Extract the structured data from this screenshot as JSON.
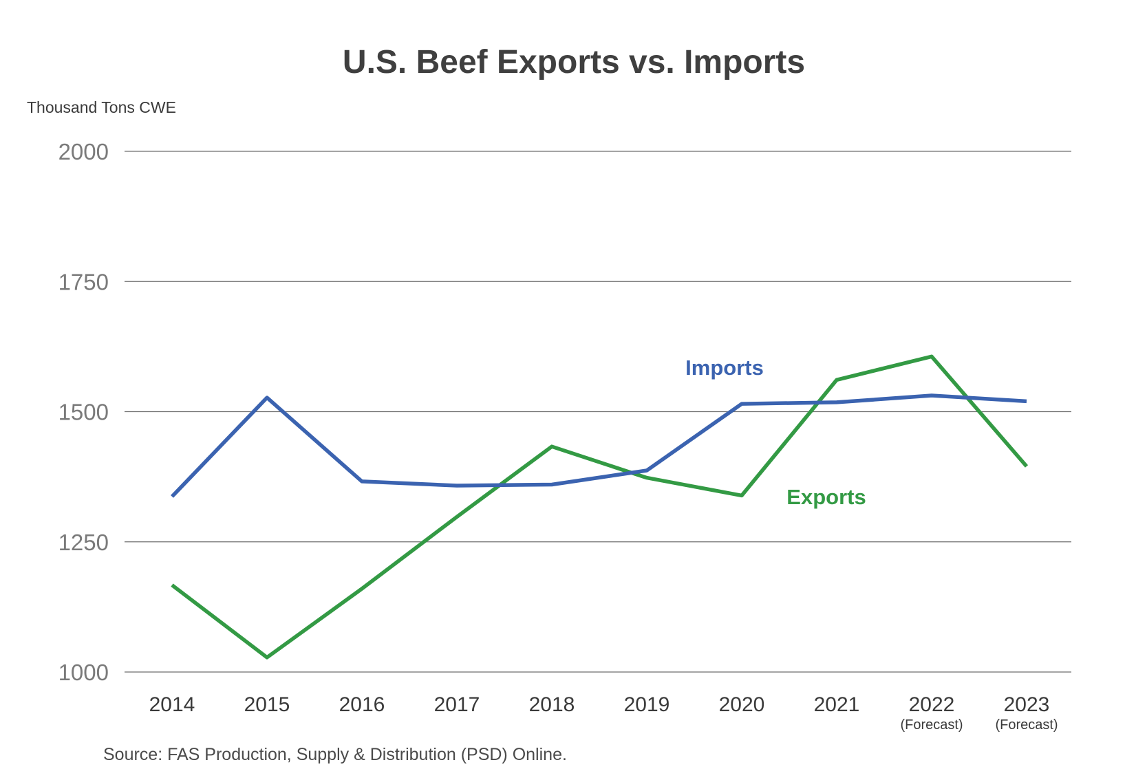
{
  "chart_data": {
    "type": "line",
    "title": "U.S. Beef Exports vs. Imports",
    "ylabel": "Thousand Tons CWE",
    "xlabel": "",
    "categories": [
      "2014",
      "2015",
      "2016",
      "2017",
      "2018",
      "2019",
      "2020",
      "2021",
      "2022",
      "2023"
    ],
    "category_sublabels": [
      "",
      "",
      "",
      "",
      "",
      "",
      "",
      "",
      "(Forecast)",
      "(Forecast)"
    ],
    "yticks": [
      "2000",
      "1750",
      "1500",
      "1250",
      "1000"
    ],
    "ylim": [
      1000,
      2000
    ],
    "grid": true,
    "legend": "none",
    "series": [
      {
        "name": "Imports",
        "color": "#3b63b0",
        "values": [
          1337,
          1527,
          1366,
          1358,
          1360,
          1387,
          1515,
          1518,
          1531,
          1520
        ]
      },
      {
        "name": "Exports",
        "color": "#339a44",
        "values": [
          1167,
          1028,
          1160,
          1298,
          1433,
          1373,
          1339,
          1561,
          1606,
          1395
        ]
      }
    ],
    "source": "Source: FAS Production, Supply & Distribution (PSD) Online."
  }
}
